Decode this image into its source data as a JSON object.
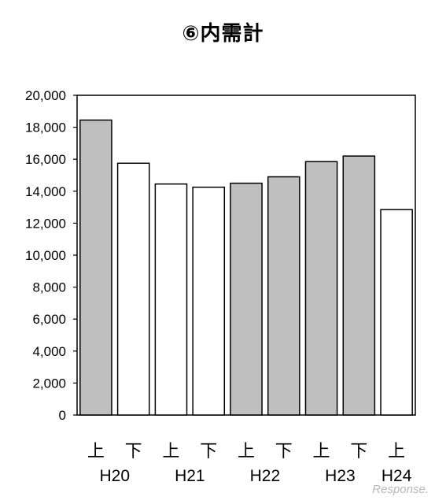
{
  "chart_data": {
    "type": "bar",
    "title": "⑥内需計",
    "categories": [
      "上",
      "下",
      "上",
      "下",
      "上",
      "下",
      "上",
      "下",
      "上"
    ],
    "year_groups": [
      "H20",
      "H21",
      "H22",
      "H23",
      "H24"
    ],
    "year_group_index": [
      0,
      0,
      1,
      1,
      2,
      2,
      3,
      3,
      4
    ],
    "values": [
      18450,
      15750,
      14450,
      14250,
      14500,
      14900,
      15850,
      16200,
      12850
    ],
    "fills": [
      "#bfbfbf",
      "#ffffff",
      "#ffffff",
      "#ffffff",
      "#bfbfbf",
      "#bfbfbf",
      "#bfbfbf",
      "#bfbfbf",
      "#ffffff"
    ],
    "ylim": [
      0,
      20000
    ],
    "yticks": [
      0,
      2000,
      4000,
      6000,
      8000,
      10000,
      12000,
      14000,
      16000,
      18000,
      20000
    ],
    "ytick_labels": [
      "0",
      "2,000",
      "4,000",
      "6,000",
      "8,000",
      "10,000",
      "12,000",
      "14,000",
      "16,000",
      "18,000",
      "20,000"
    ],
    "xlabel": "",
    "ylabel": "",
    "grid": false,
    "legend": "none"
  },
  "watermark": "Response."
}
